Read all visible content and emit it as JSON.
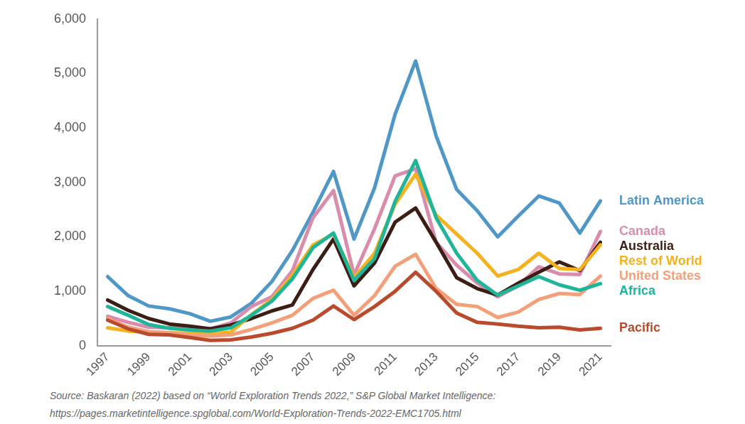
{
  "chart_data": {
    "type": "line",
    "categories": [
      "1997",
      null,
      "1999",
      null,
      "2001",
      null,
      "2003",
      null,
      "2005",
      null,
      "2007",
      null,
      "2009",
      null,
      "2011",
      null,
      "2013",
      null,
      "2015",
      null,
      "2017",
      null,
      "2019",
      null,
      "2021"
    ],
    "series": [
      {
        "name": "Latin America",
        "color": "#4f97c7",
        "values": [
          1270,
          920,
          730,
          680,
          590,
          450,
          530,
          780,
          1180,
          1750,
          2450,
          3200,
          1960,
          2900,
          4250,
          5230,
          3850,
          2870,
          2480,
          2000,
          2380,
          2750,
          2620,
          2070,
          2660
        ]
      },
      {
        "name": "Canada",
        "color": "#d98cab",
        "values": [
          540,
          430,
          340,
          330,
          330,
          310,
          420,
          720,
          900,
          1380,
          2350,
          2850,
          1300,
          2150,
          3120,
          3250,
          1900,
          1480,
          1150,
          900,
          1100,
          1450,
          1320,
          1310,
          2100
        ]
      },
      {
        "name": "Australia",
        "color": "#3b1f14",
        "values": [
          840,
          650,
          500,
          400,
          360,
          310,
          380,
          500,
          640,
          750,
          1400,
          1960,
          1100,
          1520,
          2270,
          2530,
          1900,
          1250,
          1050,
          930,
          1150,
          1350,
          1540,
          1380,
          1900
        ]
      },
      {
        "name": "Rest of World",
        "color": "#f5b21e",
        "values": [
          330,
          270,
          250,
          240,
          230,
          220,
          250,
          570,
          850,
          1300,
          1850,
          2050,
          1250,
          1700,
          2600,
          3150,
          2400,
          2050,
          1700,
          1280,
          1400,
          1700,
          1420,
          1400,
          1850
        ]
      },
      {
        "name": "United States",
        "color": "#f3a07a",
        "values": [
          500,
          340,
          260,
          240,
          200,
          180,
          200,
          300,
          420,
          560,
          870,
          1020,
          560,
          920,
          1460,
          1680,
          1050,
          760,
          720,
          520,
          620,
          850,
          960,
          940,
          1280
        ]
      },
      {
        "name": "Africa",
        "color": "#1fb59a",
        "values": [
          720,
          560,
          390,
          320,
          290,
          270,
          330,
          560,
          820,
          1230,
          1800,
          2070,
          1200,
          1600,
          2650,
          3400,
          2350,
          1700,
          1200,
          930,
          1100,
          1270,
          1120,
          1020,
          1140
        ]
      },
      {
        "name": "Pacific",
        "color": "#b94a2c",
        "values": [
          470,
          310,
          210,
          200,
          150,
          100,
          110,
          160,
          230,
          320,
          470,
          730,
          480,
          720,
          1000,
          1350,
          1000,
          600,
          430,
          400,
          360,
          330,
          340,
          290,
          320
        ]
      }
    ],
    "ylim": [
      0,
      6000
    ],
    "yticks": [
      0,
      {
        "value": 1000,
        "label": "1,000"
      },
      {
        "value": 2000,
        "label": "2,000"
      },
      {
        "value": 3000,
        "label": "3,000"
      },
      {
        "value": 4000,
        "label": "4,000"
      },
      {
        "value": 5000,
        "label": "5,000"
      },
      {
        "value": 6000,
        "label": "6,000"
      }
    ],
    "grid": false,
    "source": [
      "Source: Baskaran (2022) based on “World Exploration Trends 2022,” S&P Global Market Intelligence:",
      "https://pages.marketintelligence.spglobal.com/World-Exploration-Trends-2022-EMC1705.html"
    ]
  }
}
